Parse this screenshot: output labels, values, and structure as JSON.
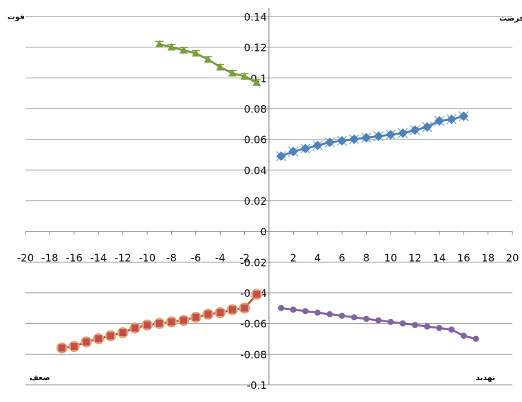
{
  "chart_data": {
    "type": "scatter",
    "title": "",
    "xlabel": "",
    "ylabel": "",
    "xlim": [
      -20,
      20
    ],
    "ylim": [
      -0.1,
      0.14
    ],
    "grid": true,
    "x_ticks": [
      "-20",
      "-18",
      "-16",
      "-14",
      "-12",
      "-10",
      "-8",
      "-6",
      "-4",
      "-2",
      "0",
      "2",
      "4",
      "6",
      "8",
      "10",
      "12",
      "14",
      "16",
      "18",
      "20"
    ],
    "y_ticks": [
      "0.14",
      "0.12",
      "0.1",
      "0.08",
      "0.06",
      "0.04",
      "0.02",
      "0",
      "-0.02",
      "-0.04",
      "-0.06",
      "-0.08",
      "-0.1"
    ],
    "quadrant_labels": {
      "top_left": "قوت",
      "top_right": "فرصت",
      "bottom_left": "ضعف",
      "bottom_right": "تهدید"
    },
    "series": [
      {
        "color": "#4f81bd",
        "marker": "diamond",
        "x": [
          1,
          2,
          3,
          4,
          5,
          6,
          7,
          8,
          9,
          10,
          11,
          12,
          13,
          14,
          15,
          16
        ],
        "y": [
          0.049,
          0.052,
          0.054,
          0.056,
          0.058,
          0.059,
          0.06,
          0.061,
          0.062,
          0.063,
          0.064,
          0.066,
          0.068,
          0.072,
          0.073,
          0.075
        ]
      },
      {
        "color": "#77a03a",
        "marker": "triangle",
        "x": [
          -9,
          -8,
          -7,
          -6,
          -5,
          -4,
          -3,
          -2,
          -1
        ],
        "y": [
          0.122,
          0.12,
          0.118,
          0.116,
          0.112,
          0.107,
          0.103,
          0.101,
          0.097
        ]
      },
      {
        "color": "#c0504d",
        "marker": "circle",
        "x": [
          -17,
          -16,
          -15,
          -14,
          -13,
          -12,
          -11,
          -10,
          -9,
          -8,
          -7,
          -6,
          -5,
          -4,
          -3,
          -2,
          -1
        ],
        "y": [
          -0.076,
          -0.075,
          -0.072,
          -0.07,
          -0.068,
          -0.066,
          -0.063,
          -0.061,
          -0.06,
          -0.059,
          -0.058,
          -0.056,
          -0.054,
          -0.053,
          -0.051,
          -0.05,
          -0.041
        ]
      },
      {
        "color": "#8064a2",
        "marker": "dot",
        "x": [
          1,
          2,
          3,
          4,
          5,
          6,
          7,
          8,
          9,
          10,
          11,
          12,
          13,
          14,
          15,
          16,
          17
        ],
        "y": [
          -0.05,
          -0.051,
          -0.052,
          -0.053,
          -0.054,
          -0.055,
          -0.056,
          -0.057,
          -0.058,
          -0.059,
          -0.06,
          -0.061,
          -0.062,
          -0.063,
          -0.064,
          -0.068,
          -0.07
        ]
      }
    ]
  }
}
